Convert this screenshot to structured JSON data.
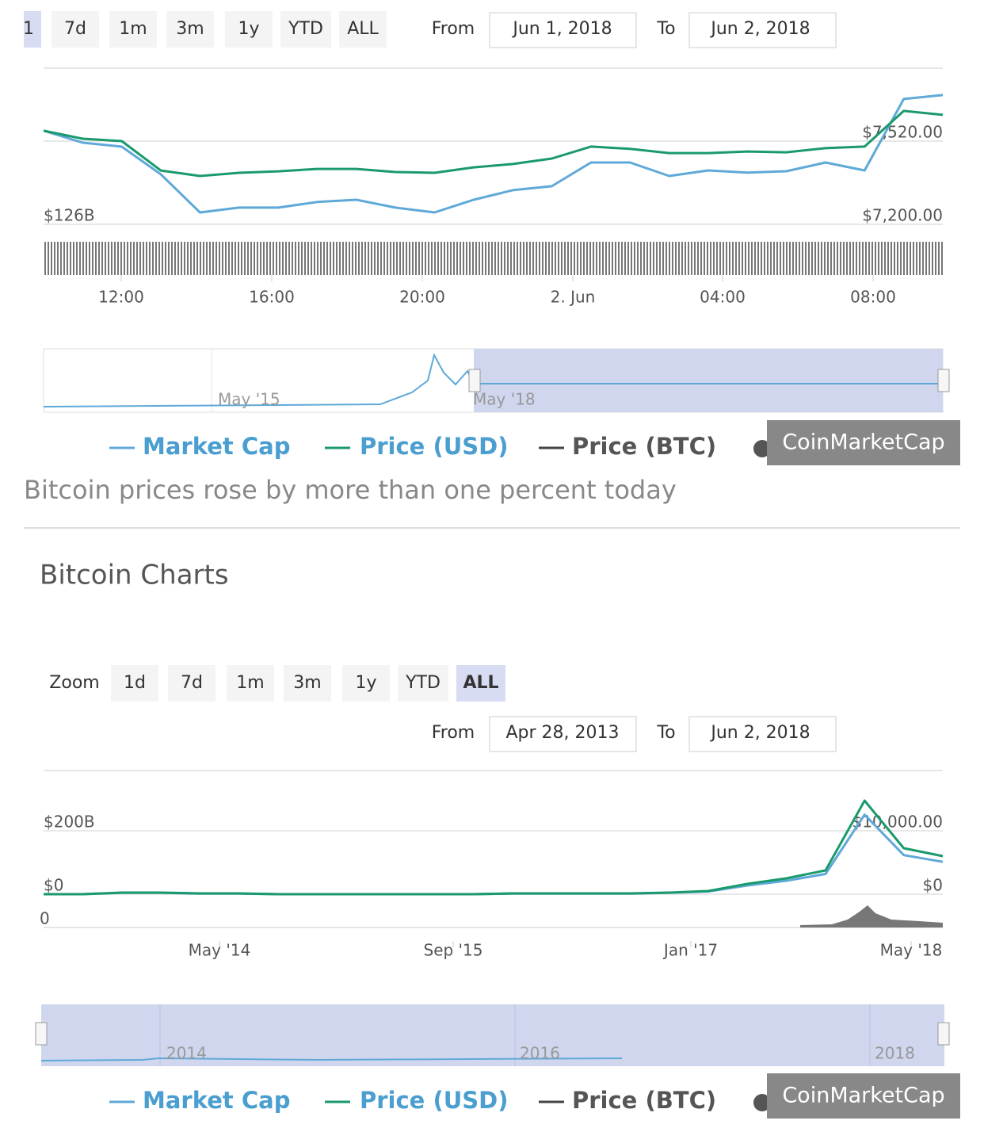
{
  "top_panel": {
    "zoom_buttons": [
      "1",
      "7d",
      "1m",
      "3m",
      "1y",
      "YTD",
      "ALL"
    ],
    "from_label": "From",
    "from": "Jun 1, 2018",
    "to_label": "To",
    "to": "Jun 2, 2018",
    "navigator_labels": [
      "May '15",
      "May '18"
    ],
    "legend_extra": "Price (BTC)",
    "watermark": "CoinMarketCap"
  },
  "caption": "Bitcoin prices rose by more than one percent today",
  "section_title": "Bitcoin Charts",
  "bottom_panel": {
    "zoom_label": "Zoom",
    "zoom_buttons": [
      "1d",
      "7d",
      "1m",
      "3m",
      "1y",
      "YTD",
      "ALL"
    ],
    "from_label": "From",
    "from": "Apr 28, 2013",
    "to_label": "To",
    "to": "Jun 2, 2018",
    "navigator_labels": [
      "2014",
      "2016",
      "2018"
    ],
    "volume_yticks": [
      0
    ],
    "legend_extra": "Price (BTC)",
    "watermark": "CoinMarketCap"
  },
  "chart_data": [
    {
      "type": "line",
      "xticks": [
        "12:00",
        "16:00",
        "20:00",
        "2. Jun",
        "04:00",
        "08:00"
      ],
      "ylim": [
        125.54,
        132.97
      ],
      "yticks": [
        {
          "value": 126,
          "label": "$126B"
        }
      ],
      "y2lim": [
        7163.4,
        7757.7
      ],
      "y2ticks": [
        {
          "value": 7520,
          "label": "$7,520.00"
        },
        {
          "value": 7200,
          "label": "$7,200.00"
        }
      ],
      "series": [
        {
          "name": "Market Cap",
          "color": "#5fa9d8",
          "values": [
            130.5,
            129.92,
            129.73,
            128.4,
            126.57,
            126.8,
            126.8,
            127.07,
            127.18,
            126.8,
            126.57,
            127.18,
            127.64,
            127.83,
            128.97,
            128.97,
            128.32,
            128.59,
            128.48,
            128.55,
            128.97,
            128.59,
            132.02,
            132.21
          ]
        },
        {
          "name": "Price (USD)",
          "color": "#1a9a6c",
          "axis": "y2",
          "values": [
            7560,
            7529,
            7520,
            7407,
            7386,
            7398,
            7404,
            7413,
            7413,
            7401,
            7398,
            7419,
            7432,
            7453,
            7499,
            7490,
            7474,
            7474,
            7480,
            7477,
            7493,
            7499,
            7636,
            7621
          ]
        }
      ]
    },
    {
      "type": "line",
      "xticks": [
        "May '14",
        "Sep '15",
        "Jan '17",
        "May '18"
      ],
      "ylim": [
        -17.5,
        357.5
      ],
      "yticks": [
        {
          "value": 0,
          "label": "$0"
        },
        {
          "value": 200,
          "label": "$200B"
        }
      ],
      "y2lim": [
        -875,
        17875
      ],
      "y2ticks": [
        {
          "value": 0,
          "label": "$0"
        },
        {
          "value": 10000,
          "label": "$10,000.00"
        }
      ],
      "series": [
        {
          "name": "Market Cap",
          "color": "#5fa9d8",
          "values": [
            0,
            0,
            4.3,
            4.3,
            2.1,
            2.1,
            0,
            0,
            0,
            0,
            0,
            0,
            2.1,
            2.1,
            2.1,
            2.1,
            4.3,
            8.5,
            27.6,
            42.5,
            63.8,
            250.8,
            123.3,
            102
          ]
        },
        {
          "name": "Price (USD)",
          "color": "#1a9a6c",
          "axis": "y2",
          "values": [
            0,
            0,
            250,
            250,
            125,
            125,
            0,
            0,
            0,
            0,
            0,
            0,
            125,
            125,
            125,
            125,
            250,
            500,
            1625,
            2500,
            3750,
            14750,
            7250,
            6000
          ]
        }
      ]
    }
  ]
}
